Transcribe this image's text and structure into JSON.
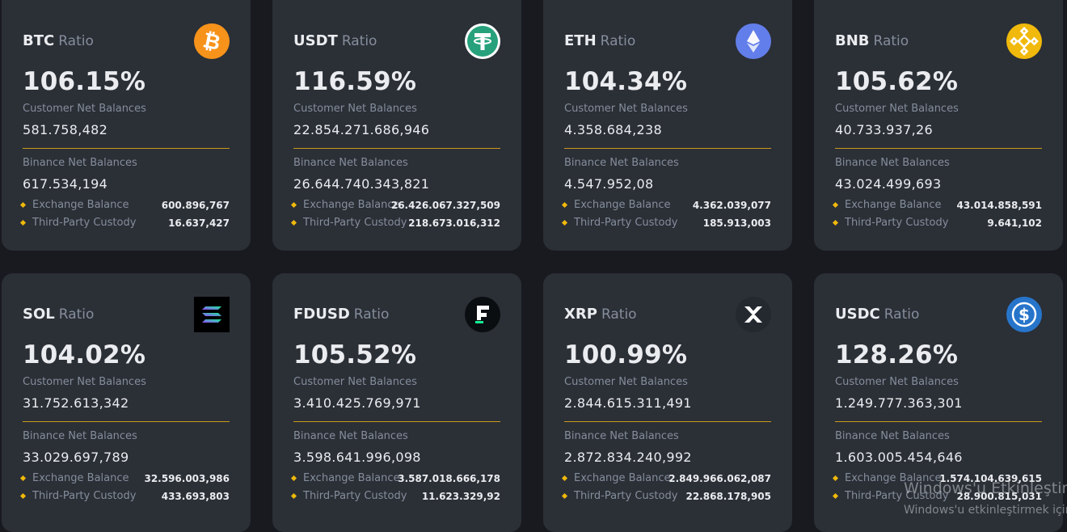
{
  "ratio_word": "Ratio",
  "labels": {
    "customer": "Customer Net Balances",
    "binance": "Binance Net Balances",
    "exchange": "Exchange Balance",
    "third_party": "Third-Party Custody"
  },
  "cards": [
    {
      "symbol": "BTC",
      "icon": "bitcoin-icon",
      "percent": "106.15%",
      "customer": "581.758,482",
      "binance": "617.534,194",
      "exchange": "600.896,767",
      "third_party": "16.637,427"
    },
    {
      "symbol": "USDT",
      "icon": "tether-icon",
      "percent": "116.59%",
      "customer": "22.854.271.686,946",
      "binance": "26.644.740.343,821",
      "exchange": "26.426.067.327,509",
      "third_party": "218.673.016,312"
    },
    {
      "symbol": "ETH",
      "icon": "ethereum-icon",
      "percent": "104.34%",
      "customer": "4.358.684,238",
      "binance": "4.547.952,08",
      "exchange": "4.362.039,077",
      "third_party": "185.913,003"
    },
    {
      "symbol": "BNB",
      "icon": "bnb-icon",
      "percent": "105.62%",
      "customer": "40.733.937,26",
      "binance": "43.024.499,693",
      "exchange": "43.014.858,591",
      "third_party": "9.641,102"
    },
    {
      "symbol": "SOL",
      "icon": "solana-icon",
      "percent": "104.02%",
      "customer": "31.752.613,342",
      "binance": "33.029.697,789",
      "exchange": "32.596.003,986",
      "third_party": "433.693,803"
    },
    {
      "symbol": "FDUSD",
      "icon": "fdusd-icon",
      "percent": "105.52%",
      "customer": "3.410.425.769,971",
      "binance": "3.598.641.996,098",
      "exchange": "3.587.018.666,178",
      "third_party": "11.623.329,92"
    },
    {
      "symbol": "XRP",
      "icon": "xrp-icon",
      "percent": "100.99%",
      "customer": "2.844.615.311,491",
      "binance": "2.872.834.240,992",
      "exchange": "2.849.966.062,087",
      "third_party": "22.868.178,905"
    },
    {
      "symbol": "USDC",
      "icon": "usdc-icon",
      "percent": "128.26%",
      "customer": "1.249.777.363,301",
      "binance": "1.603.005.454,646",
      "exchange": "1.574.104.639,615",
      "third_party": "28.900.815,031"
    }
  ],
  "colors": {
    "background": "#181a20",
    "card": "#2b2f36",
    "accent": "#f0b90b",
    "muted": "#848e9c",
    "btc": "#f7931a",
    "usdt": "#ffffff",
    "eth": "#627eea",
    "bnb": "#f0b90b",
    "sol": "#000000",
    "fdusd": "#0b0e11",
    "xrp": "#23292f",
    "usdc": "#2775ca"
  },
  "watermark": {
    "line1": "Windows'u Etkinleştir",
    "line2": "Windows'u etkinleştirmek için"
  }
}
